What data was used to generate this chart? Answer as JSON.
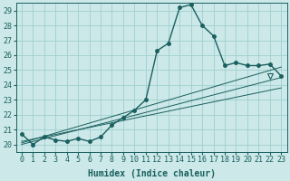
{
  "bg_color": "#cce8e8",
  "grid_color": "#9fcfcf",
  "line_color": "#1a5f5f",
  "xlabel": "Humidex (Indice chaleur)",
  "xlim": [
    -0.5,
    23.5
  ],
  "ylim": [
    19.5,
    29.5
  ],
  "yticks": [
    20,
    21,
    22,
    23,
    24,
    25,
    26,
    27,
    28,
    29
  ],
  "xticks": [
    0,
    1,
    2,
    3,
    4,
    5,
    6,
    7,
    8,
    9,
    10,
    11,
    12,
    13,
    14,
    15,
    16,
    17,
    18,
    19,
    20,
    21,
    22,
    23
  ],
  "series1_x": [
    0,
    1,
    2,
    3,
    4,
    5,
    6,
    7,
    8,
    9,
    10,
    11,
    12,
    13,
    14,
    15,
    16,
    17,
    18,
    19,
    20,
    21,
    22,
    23
  ],
  "series1_y": [
    20.7,
    20.0,
    20.5,
    20.3,
    20.2,
    20.4,
    20.2,
    20.5,
    21.3,
    21.8,
    22.3,
    23.0,
    26.3,
    26.8,
    29.2,
    29.4,
    28.0,
    27.3,
    25.3,
    25.5,
    25.3,
    25.3,
    25.4,
    24.6
  ],
  "series2_x": [
    0,
    23
  ],
  "series2_y": [
    20.1,
    25.2
  ],
  "series3_x": [
    0,
    23
  ],
  "series3_y": [
    20.0,
    24.5
  ],
  "series4_x": [
    0,
    23
  ],
  "series4_y": [
    20.2,
    23.8
  ],
  "triangle_x": 22,
  "triangle_y": 24.6,
  "marker_size": 2.5,
  "line_width": 1.0,
  "font_size_tick": 6,
  "font_size_label": 7
}
